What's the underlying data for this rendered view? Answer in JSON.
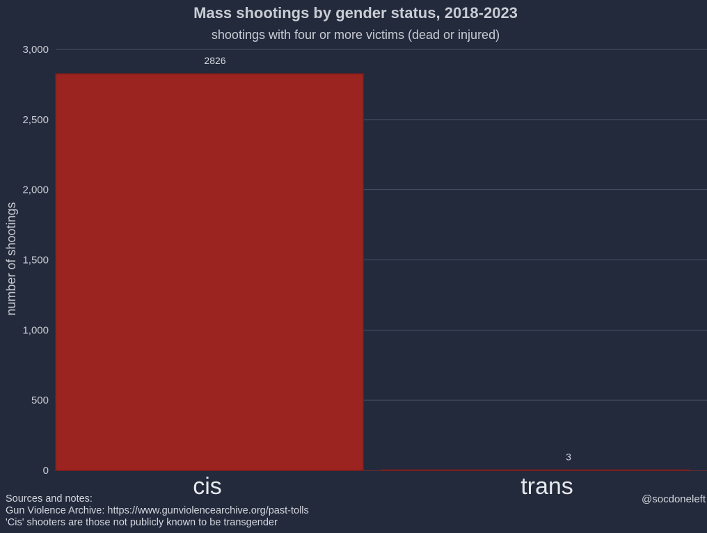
{
  "chart_data": {
    "type": "bar",
    "title": "Mass shootings by gender status, 2018-2023",
    "subtitle": "shootings with four or more victims (dead or injured)",
    "xlabel": "",
    "ylabel": "number of shootings",
    "categories": [
      "cis",
      "trans"
    ],
    "values": [
      2826,
      3
    ],
    "data_labels": [
      "2826",
      "3"
    ],
    "ylim": [
      0,
      3000
    ],
    "yticks": [
      0,
      500,
      1000,
      1500,
      2000,
      2500,
      3000
    ],
    "ytick_labels": [
      "0",
      "500",
      "1,000",
      "1,500",
      "2,000",
      "2,500",
      "3,000"
    ],
    "grid": true,
    "legend": "none",
    "colors": {
      "background": "#232a3b",
      "bar": "#9b2320",
      "bar_edge": "#7d1c1a",
      "grid": "#4a5266"
    }
  },
  "footer": {
    "heading": "Sources and notes:",
    "source": "Gun Violence Archive: https://www.gunviolencearchive.org/past-tolls",
    "note": "'Cis' shooters are those not publicly known to be transgender",
    "credit": "@socdoneleft"
  }
}
